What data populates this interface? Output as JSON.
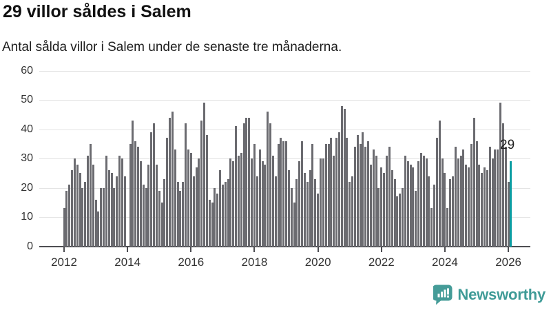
{
  "header": {
    "title": "29 villor såldes i Salem",
    "subtitle": "Antal sålda villor i Salem under de senaste tre månaderna."
  },
  "chart_data": {
    "type": "bar",
    "title": "29 villor såldes i Salem",
    "subtitle": "Antal sålda villor i Salem under de senaste tre månaderna.",
    "start_month": "2012-01",
    "end_month": "2026-02",
    "values": [
      13,
      19,
      21,
      26,
      30,
      28,
      25,
      20,
      22,
      31,
      35,
      28,
      16,
      12,
      20,
      20,
      31,
      26,
      25,
      20,
      24,
      31,
      30,
      24,
      null,
      35,
      43,
      36,
      34,
      29,
      21,
      20,
      28,
      39,
      42,
      28,
      19,
      15,
      23,
      37,
      44,
      46,
      33,
      22,
      19,
      22,
      42,
      33,
      32,
      24,
      27,
      30,
      43,
      49,
      38,
      16,
      15,
      20,
      18,
      26,
      21,
      22,
      23,
      30,
      29,
      41,
      31,
      32,
      42,
      44,
      44,
      30,
      35,
      24,
      33,
      29,
      28,
      46,
      42,
      31,
      24,
      35,
      37,
      36,
      36,
      26,
      20,
      15,
      23,
      29,
      36,
      25,
      22,
      26,
      35,
      23,
      18,
      30,
      30,
      35,
      35,
      37,
      31,
      37,
      39,
      48,
      47,
      37,
      22,
      24,
      34,
      38,
      35,
      39,
      34,
      36,
      28,
      33,
      31,
      20,
      27,
      25,
      31,
      34,
      26,
      23,
      17,
      18,
      20,
      31,
      29,
      28,
      27,
      19,
      29,
      32,
      31,
      30,
      24,
      13,
      21,
      37,
      43,
      30,
      25,
      13,
      23,
      24,
      34,
      30,
      31,
      33,
      28,
      27,
      35,
      44,
      36,
      28,
      25,
      27,
      26,
      34,
      30,
      33,
      33,
      49,
      42,
      34,
      22,
      29
    ],
    "y_ticks": [
      0,
      10,
      20,
      30,
      40,
      50,
      60
    ],
    "ylim": [
      0,
      60
    ],
    "x_ticks": [
      "2012",
      "2014",
      "2016",
      "2018",
      "2020",
      "2022",
      "2024",
      "2026"
    ],
    "grid": true,
    "legend": "none",
    "bar_color": "#6b6b70",
    "highlight_color": "#0b9da2",
    "highlight_last": true,
    "last_value_label": "29"
  },
  "annotation": {
    "latest_value": "29"
  },
  "footer": {
    "brand": "Newsworthy",
    "brand_color": "#3f9b97",
    "logo_icon": "bar-chart-speech-bubble-icon"
  }
}
